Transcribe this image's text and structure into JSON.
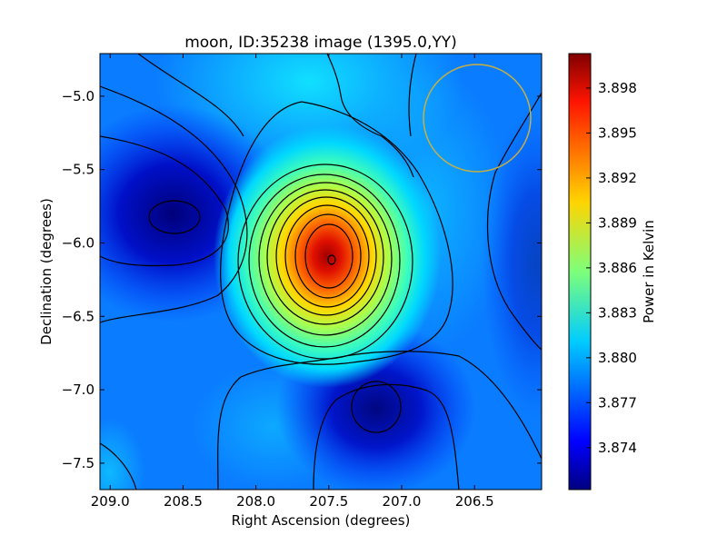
{
  "chart_data": {
    "type": "heatmap",
    "title": "moon, ID:35238 image (1395.0,YY)",
    "xlabel": "Right Ascension (degrees)",
    "ylabel": "Declination (degrees)",
    "colorbar_label": "Power in Kelvin",
    "x_reversed": true,
    "xlim": [
      209.07,
      206.04
    ],
    "ylim": [
      -7.68,
      -4.71
    ],
    "x_ticks": [
      209.0,
      208.5,
      208.0,
      207.5,
      207.0,
      206.5
    ],
    "x_tick_labels": [
      "209.0",
      "208.5",
      "208.0",
      "207.5",
      "207.0",
      "206.5"
    ],
    "y_ticks": [
      -5.0,
      -5.5,
      -6.0,
      -6.5,
      -7.0,
      -7.5
    ],
    "y_tick_labels": [
      "−5.0",
      "−5.5",
      "−6.0",
      "−6.5",
      "−7.0",
      "−7.5"
    ],
    "colorbar_range": [
      3.8712,
      3.9003
    ],
    "colorbar_ticks": [
      3.874,
      3.877,
      3.88,
      3.883,
      3.886,
      3.889,
      3.892,
      3.895,
      3.898
    ],
    "colorbar_tick_labels": [
      "3.874",
      "3.877",
      "3.880",
      "3.883",
      "3.886",
      "3.889",
      "3.892",
      "3.895",
      "3.898"
    ],
    "colormap": "jet",
    "features": [
      {
        "kind": "peak",
        "ra": 207.45,
        "dec": -6.1,
        "value": 3.899
      },
      {
        "kind": "minimum",
        "ra": 208.55,
        "dec": -5.79,
        "value": 3.8725
      },
      {
        "kind": "minimum",
        "ra": 207.15,
        "dec": -7.12,
        "value": 3.873
      }
    ],
    "beam_circle": {
      "ra": 206.45,
      "dec": -5.12,
      "radius_deg": 0.37,
      "color": "#c8b040"
    },
    "contours": "black"
  }
}
